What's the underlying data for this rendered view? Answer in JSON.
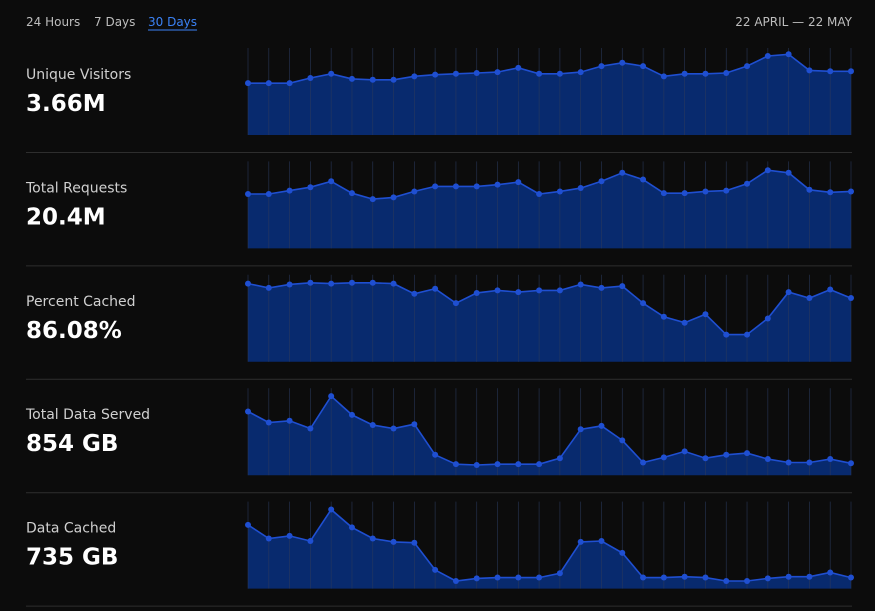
{
  "tabs": [
    "24 Hours",
    "7 Days",
    "30 Days"
  ],
  "date_range": "22 APRIL — 22 MAY",
  "chart_data": [
    {
      "type": "area",
      "title": "Unique Visitors",
      "subtitle": "3.66M",
      "ylim": [
        0,
        100
      ],
      "color": "#1f4fd1",
      "values": [
        61,
        61,
        61,
        67,
        72,
        66,
        65,
        65,
        69,
        71,
        72,
        73,
        74,
        79,
        72,
        72,
        74,
        81,
        85,
        81,
        69,
        72,
        72,
        73,
        81,
        93,
        95,
        76,
        75,
        75
      ]
    },
    {
      "type": "area",
      "title": "Total Requests",
      "subtitle": "20.4M",
      "ylim": [
        0,
        100
      ],
      "color": "#1f4fd1",
      "values": [
        64,
        64,
        68,
        72,
        79,
        65,
        58,
        60,
        67,
        73,
        73,
        73,
        75,
        78,
        64,
        67,
        71,
        79,
        89,
        81,
        65,
        65,
        67,
        68,
        76,
        92,
        89,
        69,
        66,
        67
      ]
    },
    {
      "type": "area",
      "title": "Percent Cached",
      "subtitle": "86.08%",
      "ylim": [
        0,
        100
      ],
      "color": "#1f4fd1",
      "values": [
        92,
        87,
        91,
        93,
        92,
        93,
        93,
        92,
        80,
        86,
        69,
        81,
        84,
        82,
        84,
        84,
        91,
        87,
        89,
        69,
        53,
        46,
        56,
        32,
        32,
        51,
        82,
        75,
        85,
        75
      ]
    },
    {
      "type": "area",
      "title": "Total Data Served",
      "subtitle": "854 GB",
      "ylim": [
        0,
        100
      ],
      "color": "#1f4fd1",
      "values": [
        75,
        62,
        64,
        55,
        93,
        71,
        59,
        55,
        60,
        24,
        13,
        12,
        13,
        13,
        13,
        20,
        54,
        58,
        41,
        15,
        21,
        28,
        20,
        24,
        26,
        19,
        15,
        15,
        19,
        14
      ]
    },
    {
      "type": "area",
      "title": "Data Cached",
      "subtitle": "735 GB",
      "ylim": [
        0,
        100
      ],
      "color": "#1f4fd1",
      "values": [
        75,
        59,
        62,
        56,
        93,
        72,
        59,
        55,
        54,
        22,
        9,
        12,
        13,
        13,
        13,
        18,
        55,
        56,
        42,
        13,
        13,
        14,
        13,
        9,
        9,
        12,
        14,
        14,
        19,
        13
      ]
    }
  ]
}
